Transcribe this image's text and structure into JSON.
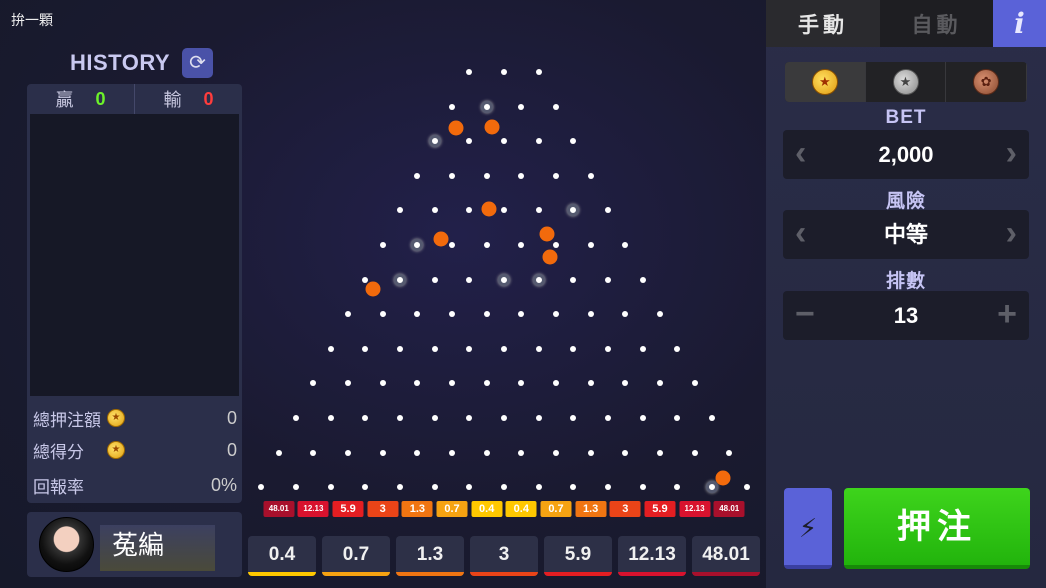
{
  "header": {
    "title": "拚一顆"
  },
  "history": {
    "title": "HISTORY",
    "refresh_icon": "refresh-icon",
    "win_label": "贏",
    "win_count": "0",
    "lose_label": "輸",
    "lose_count": "0"
  },
  "stats": {
    "total_bet_label": "總押注額",
    "total_bet": "0",
    "total_score_label": "總得分",
    "total_score": "0",
    "return_rate_label": "回報率",
    "return_rate": "0%"
  },
  "user": {
    "name": "菟編"
  },
  "board": {
    "rows": 13,
    "slots": [
      "48.01",
      "12.13",
      "5.9",
      "3",
      "1.3",
      "0.7",
      "0.4",
      "0.4",
      "0.7",
      "1.3",
      "3",
      "5.9",
      "12.13",
      "48.01"
    ],
    "colors": {
      "48.01": "#a8102c",
      "12.13": "#d8122e",
      "5.9": "#e41e22",
      "3": "#ea4418",
      "1.3": "#f07512",
      "0.7": "#f6a312",
      "0.4": "#ffc800"
    }
  },
  "payouts": [
    "0.4",
    "0.7",
    "1.3",
    "3",
    "5.9",
    "12.13",
    "48.01"
  ],
  "controls": {
    "tabs": [
      "手動",
      "自動",
      "i"
    ],
    "bet_label": "BET",
    "bet_value": "2,000",
    "risk_label": "風險",
    "risk_value": "中等",
    "rows_label": "排數",
    "rows_value": "13",
    "play_label": "押注"
  }
}
